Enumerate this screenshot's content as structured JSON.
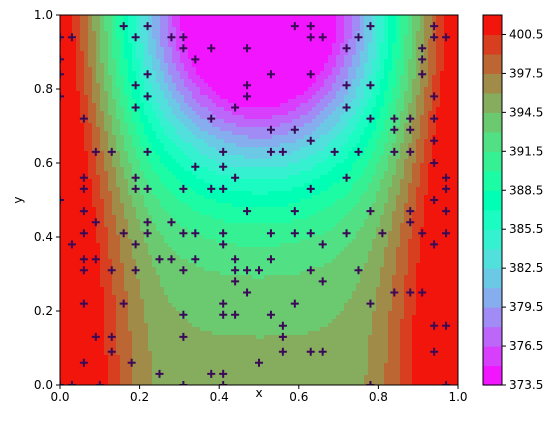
{
  "chart_data": {
    "type": "heatmap",
    "subtype": "filled-contour-with-scatter",
    "xlabel": "x",
    "ylabel": "y",
    "xlim": [
      0.0,
      1.0
    ],
    "ylim": [
      0.0,
      1.0
    ],
    "x_ticks": [
      "0.0",
      "0.2",
      "0.4",
      "0.6",
      "0.8",
      "1.0"
    ],
    "y_ticks": [
      "0.0",
      "0.2",
      "0.4",
      "0.6",
      "0.8",
      "1.0"
    ],
    "colormap": "rainbow",
    "colorbar": {
      "range": [
        373.5,
        402.0
      ],
      "ticks": [
        "373.5",
        "376.5",
        "379.5",
        "382.5",
        "385.5",
        "388.5",
        "391.5",
        "394.5",
        "397.5",
        "400.5"
      ],
      "levels": 19
    },
    "field_description": "temperature-like field, ~401 at the left and right walls, ~396-397 across the bottom, minimum ~373.5 at the top center",
    "marker": {
      "shape": "plus",
      "color": "#3b0a57"
    },
    "points": [
      [
        0.0,
        0.0
      ],
      [
        0.03,
        0.0
      ],
      [
        0.1,
        0.0
      ],
      [
        0.31,
        0.0
      ],
      [
        0.41,
        0.0
      ],
      [
        0.78,
        0.0
      ],
      [
        0.97,
        0.0
      ],
      [
        0.06,
        0.06
      ],
      [
        0.18,
        0.06
      ],
      [
        0.25,
        0.03
      ],
      [
        0.38,
        0.03
      ],
      [
        0.41,
        0.03
      ],
      [
        0.5,
        0.06
      ],
      [
        0.09,
        0.13
      ],
      [
        0.13,
        0.13
      ],
      [
        0.13,
        0.09
      ],
      [
        0.31,
        0.13
      ],
      [
        0.56,
        0.13
      ],
      [
        0.56,
        0.09
      ],
      [
        0.63,
        0.09
      ],
      [
        0.66,
        0.09
      ],
      [
        0.94,
        0.16
      ],
      [
        0.97,
        0.16
      ],
      [
        0.94,
        0.09
      ],
      [
        0.56,
        0.16
      ],
      [
        0.06,
        0.22
      ],
      [
        0.16,
        0.22
      ],
      [
        0.31,
        0.19
      ],
      [
        0.41,
        0.19
      ],
      [
        0.41,
        0.22
      ],
      [
        0.44,
        0.19
      ],
      [
        0.53,
        0.19
      ],
      [
        0.59,
        0.22
      ],
      [
        0.78,
        0.22
      ],
      [
        0.84,
        0.25
      ],
      [
        0.88,
        0.25
      ],
      [
        0.91,
        0.25
      ],
      [
        0.06,
        0.31
      ],
      [
        0.06,
        0.34
      ],
      [
        0.09,
        0.34
      ],
      [
        0.13,
        0.31
      ],
      [
        0.19,
        0.31
      ],
      [
        0.25,
        0.34
      ],
      [
        0.28,
        0.34
      ],
      [
        0.31,
        0.31
      ],
      [
        0.34,
        0.34
      ],
      [
        0.44,
        0.31
      ],
      [
        0.44,
        0.28
      ],
      [
        0.47,
        0.25
      ],
      [
        0.47,
        0.31
      ],
      [
        0.5,
        0.31
      ],
      [
        0.53,
        0.34
      ],
      [
        0.63,
        0.31
      ],
      [
        0.66,
        0.28
      ],
      [
        0.75,
        0.31
      ],
      [
        0.03,
        0.38
      ],
      [
        0.06,
        0.41
      ],
      [
        0.09,
        0.44
      ],
      [
        0.16,
        0.41
      ],
      [
        0.19,
        0.38
      ],
      [
        0.22,
        0.44
      ],
      [
        0.22,
        0.41
      ],
      [
        0.28,
        0.44
      ],
      [
        0.31,
        0.41
      ],
      [
        0.34,
        0.41
      ],
      [
        0.41,
        0.41
      ],
      [
        0.41,
        0.38
      ],
      [
        0.44,
        0.34
      ],
      [
        0.53,
        0.41
      ],
      [
        0.59,
        0.41
      ],
      [
        0.63,
        0.41
      ],
      [
        0.66,
        0.38
      ],
      [
        0.72,
        0.41
      ],
      [
        0.81,
        0.41
      ],
      [
        0.88,
        0.44
      ],
      [
        0.91,
        0.41
      ],
      [
        0.94,
        0.38
      ],
      [
        0.97,
        0.41
      ],
      [
        0.06,
        0.47
      ],
      [
        0.06,
        0.53
      ],
      [
        0.06,
        0.56
      ],
      [
        0.19,
        0.53
      ],
      [
        0.19,
        0.56
      ],
      [
        0.22,
        0.53
      ],
      [
        0.31,
        0.53
      ],
      [
        0.38,
        0.53
      ],
      [
        0.41,
        0.53
      ],
      [
        0.44,
        0.56
      ],
      [
        0.47,
        0.47
      ],
      [
        0.59,
        0.47
      ],
      [
        0.63,
        0.53
      ],
      [
        0.72,
        0.56
      ],
      [
        0.78,
        0.47
      ],
      [
        0.88,
        0.47
      ],
      [
        0.94,
        0.5
      ],
      [
        0.97,
        0.53
      ],
      [
        0.97,
        0.56
      ],
      [
        0.97,
        0.47
      ],
      [
        0.0,
        0.5
      ],
      [
        0.09,
        0.63
      ],
      [
        0.13,
        0.63
      ],
      [
        0.22,
        0.63
      ],
      [
        0.34,
        0.59
      ],
      [
        0.41,
        0.59
      ],
      [
        0.41,
        0.63
      ],
      [
        0.53,
        0.63
      ],
      [
        0.56,
        0.63
      ],
      [
        0.69,
        0.63
      ],
      [
        0.75,
        0.63
      ],
      [
        0.84,
        0.63
      ],
      [
        0.88,
        0.63
      ],
      [
        0.94,
        0.66
      ],
      [
        0.94,
        0.6
      ],
      [
        0.06,
        0.72
      ],
      [
        0.38,
        0.72
      ],
      [
        0.53,
        0.69
      ],
      [
        0.59,
        0.69
      ],
      [
        0.63,
        0.66
      ],
      [
        0.78,
        0.72
      ],
      [
        0.84,
        0.69
      ],
      [
        0.84,
        0.72
      ],
      [
        0.88,
        0.69
      ],
      [
        0.88,
        0.72
      ],
      [
        0.94,
        0.72
      ],
      [
        0.19,
        0.75
      ],
      [
        0.22,
        0.78
      ],
      [
        0.44,
        0.75
      ],
      [
        0.47,
        0.78
      ],
      [
        0.47,
        0.81
      ],
      [
        0.72,
        0.75
      ],
      [
        0.72,
        0.81
      ],
      [
        0.78,
        0.81
      ],
      [
        0.94,
        0.78
      ],
      [
        0.0,
        0.78
      ],
      [
        0.0,
        0.84
      ],
      [
        0.0,
        0.88
      ],
      [
        0.19,
        0.81
      ],
      [
        0.22,
        0.84
      ],
      [
        0.34,
        0.88
      ],
      [
        0.53,
        0.84
      ],
      [
        0.63,
        0.84
      ],
      [
        0.91,
        0.84
      ],
      [
        0.91,
        0.88
      ],
      [
        0.16,
        0.97
      ],
      [
        0.22,
        0.97
      ],
      [
        0.03,
        0.94
      ],
      [
        0.19,
        0.94
      ],
      [
        0.28,
        0.94
      ],
      [
        0.31,
        0.91
      ],
      [
        0.31,
        0.94
      ],
      [
        0.38,
        0.91
      ],
      [
        0.47,
        0.91
      ],
      [
        0.63,
        0.94
      ],
      [
        0.66,
        0.94
      ],
      [
        0.72,
        0.91
      ],
      [
        0.75,
        0.94
      ],
      [
        0.78,
        0.97
      ],
      [
        0.91,
        0.91
      ],
      [
        0.94,
        0.97
      ],
      [
        0.94,
        0.94
      ],
      [
        0.97,
        0.94
      ],
      [
        0.63,
        0.97
      ],
      [
        0.59,
        0.97
      ],
      [
        0.0,
        0.94
      ]
    ]
  }
}
